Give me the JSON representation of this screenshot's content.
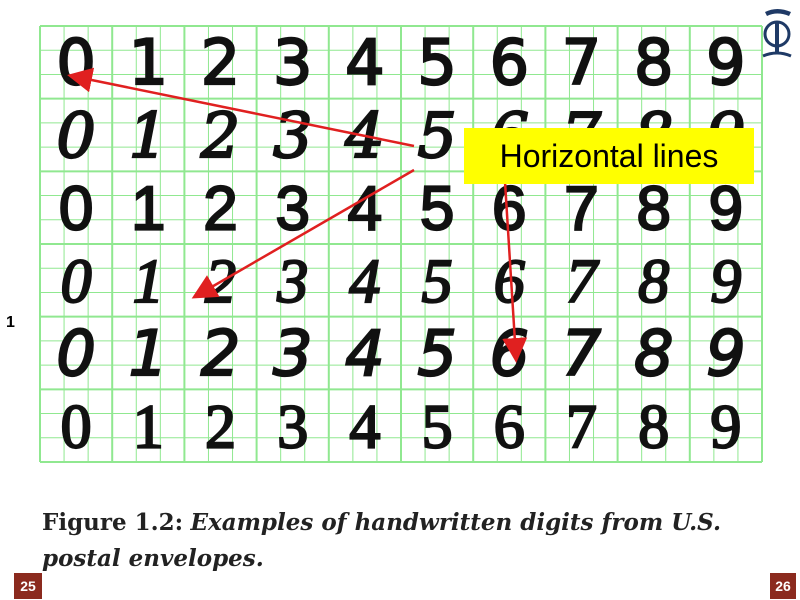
{
  "slide": {
    "callout_label": "Horizontal lines",
    "side_number": "1",
    "page_left": "25",
    "page_right": "26",
    "accent_color": "#8b2a1e",
    "callout_color": "#ffff00",
    "arrow_color": "#e02020",
    "grid_color": "#90e890"
  },
  "figure": {
    "digits": [
      "0",
      "1",
      "2",
      "3",
      "4",
      "5",
      "6",
      "7",
      "8",
      "9"
    ],
    "rows": 6,
    "caption_label": "Figure 1.2:",
    "caption_text": "Examples of handwritten digits from U.S. postal envelopes."
  },
  "logo": {
    "icon": "university-logo-icon"
  }
}
